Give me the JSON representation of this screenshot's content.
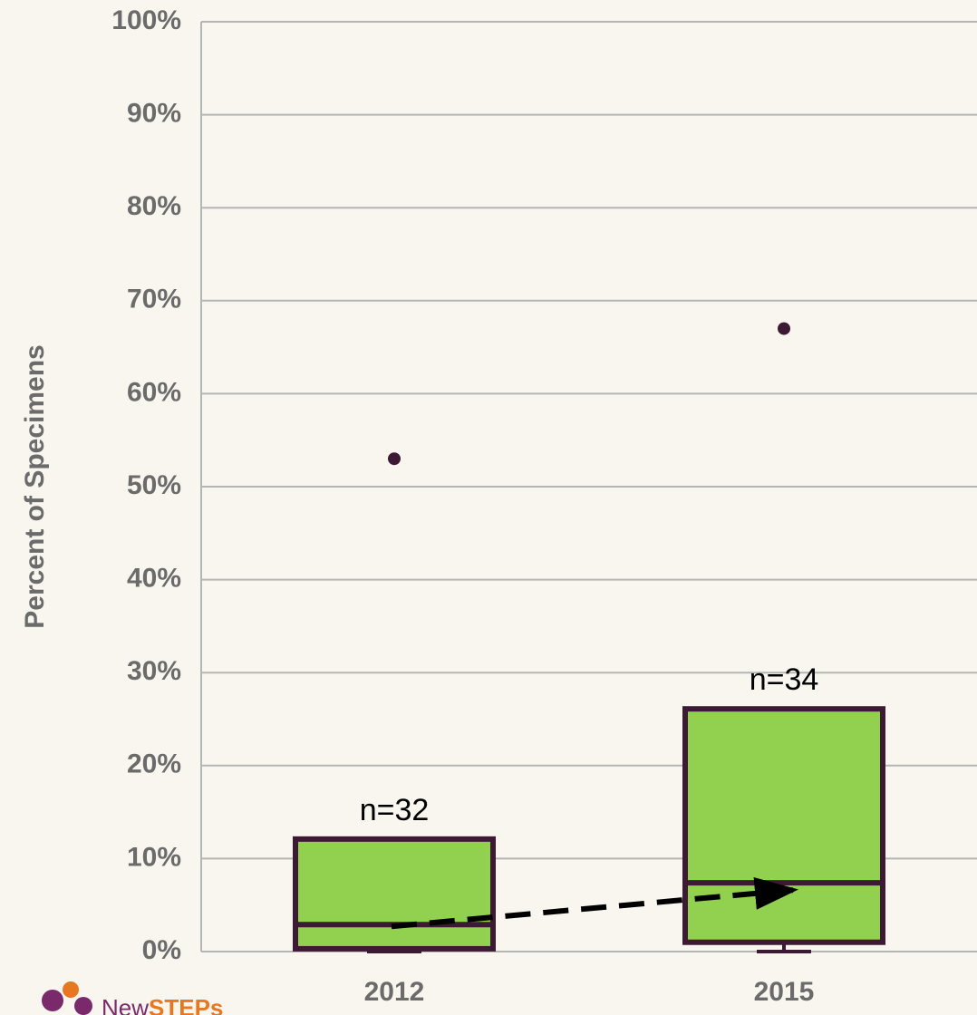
{
  "chart_data": {
    "type": "box",
    "y_label": "Percent of Specimens",
    "categories": [
      "2012",
      "2015"
    ],
    "boxes": [
      {
        "whislo": 0,
        "q1": 0.3,
        "med": 2.9,
        "q3": 12.1,
        "whishi": 12.1,
        "fliers": [
          53
        ]
      },
      {
        "whislo": 0,
        "q1": 1.0,
        "med": 7.4,
        "q3": 26.1,
        "whishi": 26.1,
        "fliers": [
          67
        ]
      }
    ],
    "annotations": [
      "n=32",
      "n=34"
    ],
    "box_color": "#92d050",
    "edge_color": "#3d1a33",
    "ylim": [
      0,
      100
    ],
    "yticks": [
      {
        "value": 0,
        "label": "0%"
      },
      {
        "value": 10,
        "label": "10%"
      },
      {
        "value": 20,
        "label": "20%"
      },
      {
        "value": 30,
        "label": "30%"
      },
      {
        "value": 40,
        "label": "40%"
      },
      {
        "value": 50,
        "label": "50%"
      },
      {
        "value": 60,
        "label": "60%"
      },
      {
        "value": 70,
        "label": "70%"
      },
      {
        "value": 80,
        "label": "80%"
      },
      {
        "value": 90,
        "label": "90%"
      },
      {
        "value": 100,
        "label": "100%"
      }
    ],
    "grid": true
  },
  "logo": {
    "part1": "New",
    "part2": "STEPs"
  }
}
